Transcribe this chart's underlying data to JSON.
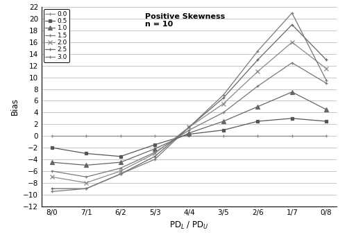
{
  "x_labels": [
    "8/0",
    "7/1",
    "6/2",
    "5/3",
    "4/4",
    "3/5",
    "2/6",
    "1/7",
    "0/8"
  ],
  "x_positions": [
    0,
    1,
    2,
    3,
    4,
    5,
    6,
    7,
    8
  ],
  "series": [
    {
      "label": "0.0",
      "marker": "P",
      "color": "#888888",
      "linewidth": 0.9,
      "markersize": 3.5,
      "values": [
        0.0,
        0.0,
        0.0,
        0.0,
        0.0,
        0.0,
        0.0,
        0.0,
        0.0
      ]
    },
    {
      "label": "0.5",
      "marker": "s",
      "color": "#555555",
      "linewidth": 0.9,
      "markersize": 3.5,
      "values": [
        -2.0,
        -3.0,
        -3.5,
        -1.5,
        0.3,
        1.0,
        2.5,
        3.0,
        2.5
      ]
    },
    {
      "label": "1.0",
      "marker": "^",
      "color": "#666666",
      "linewidth": 0.9,
      "markersize": 4.0,
      "values": [
        -4.5,
        -5.0,
        -4.5,
        -2.2,
        0.5,
        2.5,
        5.0,
        7.5,
        4.5
      ]
    },
    {
      "label": "1.5",
      "marker": "P",
      "color": "#777777",
      "linewidth": 0.9,
      "markersize": 3.5,
      "values": [
        -6.0,
        -7.0,
        -5.5,
        -2.8,
        1.0,
        4.0,
        8.5,
        12.5,
        9.0
      ]
    },
    {
      "label": "2.0",
      "marker": "x",
      "color": "#888888",
      "linewidth": 0.9,
      "markersize": 4.5,
      "values": [
        -7.0,
        -8.0,
        -6.0,
        -3.0,
        1.5,
        5.5,
        11.0,
        16.0,
        11.5
      ]
    },
    {
      "label": "2.5",
      "marker": "P",
      "color": "#666666",
      "linewidth": 0.9,
      "markersize": 3.5,
      "values": [
        -9.0,
        -9.0,
        -6.5,
        -3.5,
        1.5,
        6.5,
        13.0,
        19.0,
        13.0
      ]
    },
    {
      "label": "3.0",
      "marker": "P",
      "color": "#777777",
      "linewidth": 0.9,
      "markersize": 3.5,
      "values": [
        -9.5,
        -9.0,
        -6.5,
        -4.0,
        1.5,
        7.0,
        14.5,
        21.0,
        9.5
      ]
    }
  ],
  "xlabel": "PD$_L$ / PD$_U$",
  "ylabel": "Bias",
  "ylim": [
    -12,
    22
  ],
  "yticks": [
    -12,
    -10,
    -8,
    -6,
    -4,
    -2,
    0,
    2,
    4,
    6,
    8,
    10,
    12,
    14,
    16,
    18,
    20,
    22
  ],
  "annotation_text": "Positive Skewness\nn = 10",
  "background_color": "#ffffff",
  "grid_color": "#bbbbbb"
}
